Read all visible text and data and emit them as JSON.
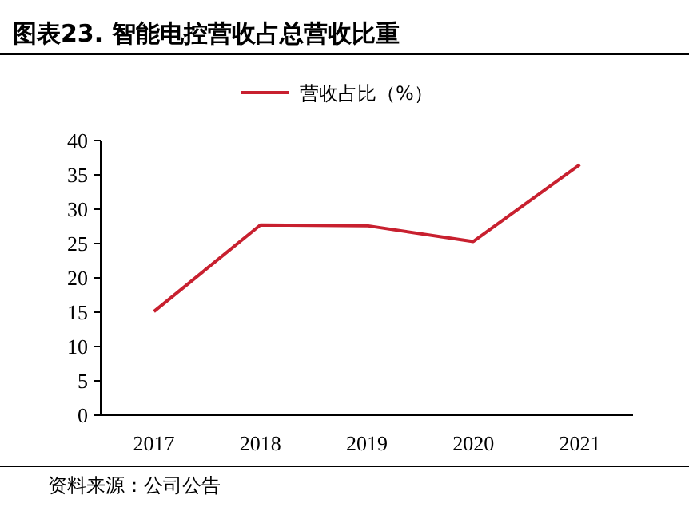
{
  "chart_data": {
    "type": "line",
    "title": "图表23. 智能电控营收占总营收比重",
    "categories": [
      "2017",
      "2018",
      "2019",
      "2020",
      "2021"
    ],
    "series": [
      {
        "name": "营收占比（%）",
        "color": "#c8202f",
        "values": [
          15.1,
          27.7,
          27.6,
          25.3,
          36.5
        ]
      }
    ],
    "ylim": [
      0,
      40
    ],
    "yticks": [
      0,
      5,
      10,
      15,
      20,
      25,
      30,
      35,
      40
    ],
    "legend": "top",
    "grid": false,
    "marker": "none",
    "line_style": "solid",
    "annotations": [
      "资料来源：公司公告"
    ]
  }
}
